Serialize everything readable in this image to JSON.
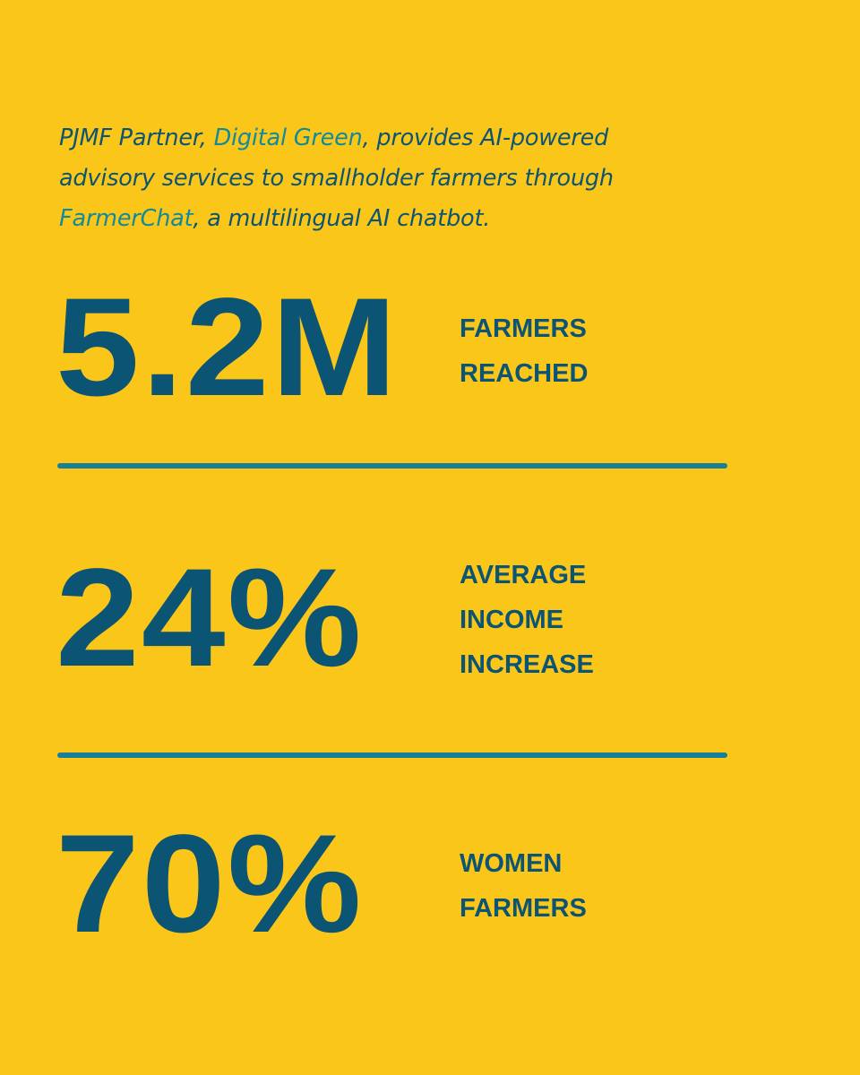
{
  "intro": {
    "segments": [
      "PJMF Partner, ",
      "Digital Green",
      ", provides AI-powered advisory services to smallholder farmers through ",
      "FarmerChat",
      ", a multilingual AI chatbot."
    ]
  },
  "stats": [
    {
      "value": "5.2M",
      "label": [
        "FARMERS",
        "REACHED"
      ]
    },
    {
      "value": "24%",
      "label": [
        "AVERAGE",
        "INCOME",
        "INCREASE"
      ]
    },
    {
      "value": "70%",
      "label": [
        "WOMEN",
        "FARMERS"
      ]
    }
  ]
}
